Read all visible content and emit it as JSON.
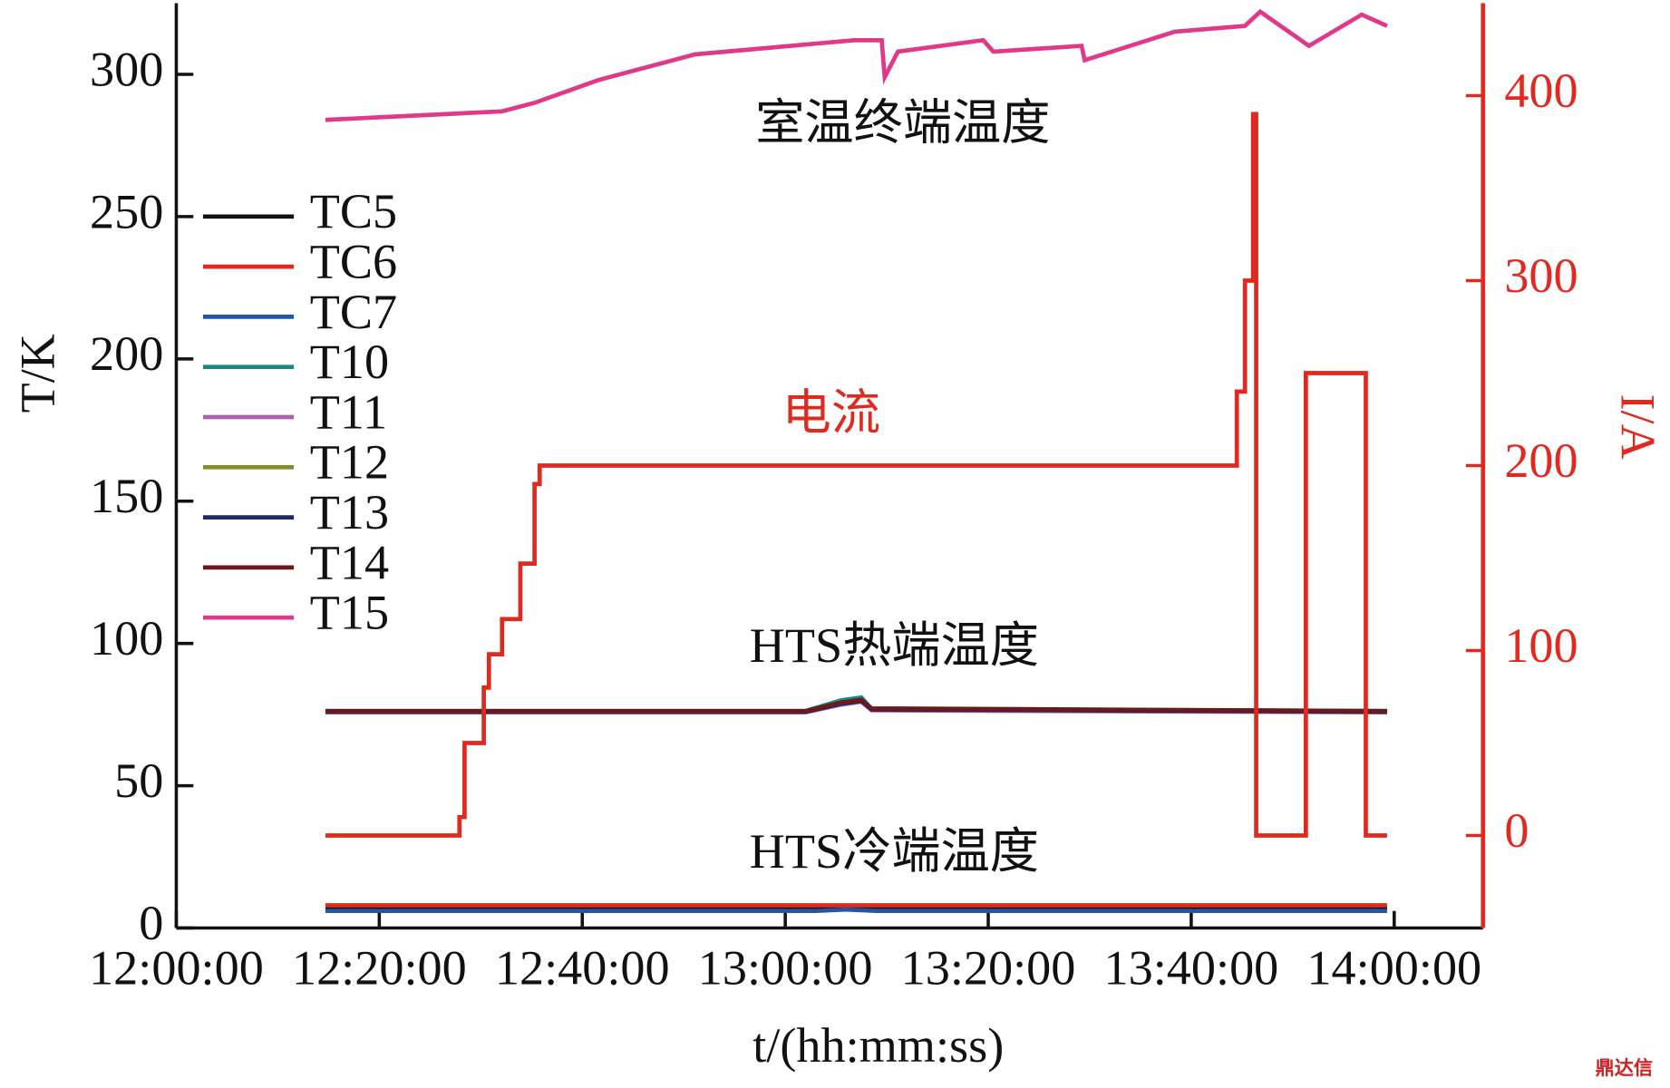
{
  "chart_data": {
    "type": "line",
    "xlabel": "t/(hh:mm:ss)",
    "ylabel": "T/K",
    "y2label": "I/A",
    "xlim": [
      "12:00:00",
      "14:08:45"
    ],
    "xticks": [
      "12:00:00",
      "12:20:00",
      "12:40:00",
      "13:00:00",
      "13:20:00",
      "13:40:00",
      "14:00:00"
    ],
    "ylim": [
      0,
      325
    ],
    "yticks": [
      0,
      50,
      100,
      150,
      200,
      250,
      300
    ],
    "y2lim": [
      -50,
      450
    ],
    "y2ticks": [
      0,
      100,
      200,
      300,
      400
    ],
    "y2color": "#e02a20",
    "legend": "upper left",
    "annotations": [
      {
        "text": "室温终端温度",
        "color": "#111111"
      },
      {
        "text": "电流",
        "color": "#e02a20"
      },
      {
        "text": "HTS热端温度",
        "color": "#111111"
      },
      {
        "text": "HTS冷端温度",
        "color": "#111111"
      }
    ],
    "watermark": "鼎达信",
    "series": [
      {
        "name": "TC5",
        "color": "#111111",
        "x": [
          "12:14:42",
          "13:03:00",
          "13:06:00",
          "13:09:00",
          "13:59:18"
        ],
        "values": [
          7,
          7,
          7.3,
          7,
          7
        ]
      },
      {
        "name": "TC6",
        "color": "#e02a20",
        "x": [
          "12:14:42",
          "13:03:00",
          "13:06:00",
          "13:09:00",
          "13:59:18"
        ],
        "values": [
          8,
          8,
          8,
          8,
          8
        ]
      },
      {
        "name": "TC7",
        "color": "#2456a8",
        "x": [
          "12:14:42",
          "13:03:00",
          "13:06:00",
          "13:09:00",
          "13:59:18"
        ],
        "values": [
          6,
          6,
          6.5,
          6,
          6
        ]
      },
      {
        "name": "T10",
        "color": "#1a8a80",
        "x": [
          "12:14:42",
          "13:02:00",
          "13:05:30",
          "13:07:30",
          "13:08:30",
          "13:59:18"
        ],
        "values": [
          76.3,
          76.3,
          80,
          81,
          77,
          76.3
        ]
      },
      {
        "name": "T11",
        "color": "#b060b0",
        "x": [
          "12:14:42",
          "13:02:00",
          "13:05:30",
          "13:07:30",
          "13:08:30",
          "13:59:18"
        ],
        "values": [
          75.8,
          75.8,
          78.5,
          79.5,
          76.5,
          75.8
        ]
      },
      {
        "name": "T12",
        "color": "#8a8a2a",
        "x": [
          "12:14:42",
          "13:02:00",
          "13:05:30",
          "13:07:30",
          "13:08:30",
          "13:59:18"
        ],
        "values": [
          76,
          76,
          79,
          80,
          77,
          76
        ]
      },
      {
        "name": "T13",
        "color": "#1c2a6a",
        "x": [
          "12:14:42",
          "13:02:00",
          "13:05:30",
          "13:07:30",
          "13:08:30",
          "13:59:18"
        ],
        "values": [
          76,
          76,
          78.8,
          79.8,
          76.8,
          76
        ]
      },
      {
        "name": "T14",
        "color": "#6a1a1a",
        "x": [
          "12:14:42",
          "13:02:00",
          "13:05:30",
          "13:07:30",
          "13:08:30",
          "13:59:18"
        ],
        "values": [
          76.2,
          76.2,
          79.2,
          80.2,
          77.2,
          76.2
        ]
      },
      {
        "name": "T15",
        "color": "#e0388a",
        "x": [
          "12:14:42",
          "12:32:06",
          "12:35:18",
          "12:41:36",
          "12:51:06",
          "13:03:42",
          "13:06:48",
          "13:09:30",
          "13:09:48",
          "13:11:06",
          "13:19:30",
          "13:20:30",
          "13:29:12",
          "13:29:30",
          "13:38:24",
          "13:45:18",
          "13:46:48",
          "13:51:36",
          "13:56:48",
          "13:59:18"
        ],
        "values": [
          284,
          287,
          290,
          298,
          307,
          311,
          312,
          312,
          299,
          308,
          312,
          308,
          310,
          305,
          315,
          317,
          322,
          310,
          321,
          317
        ]
      }
    ],
    "current": {
      "axis": "y2",
      "color": "#e02a20",
      "x": [
        "12:14:42",
        "12:27:54",
        "12:27:54",
        "12:28:24",
        "12:28:24",
        "12:30:18",
        "12:30:18",
        "12:30:48",
        "12:30:48",
        "12:32:06",
        "12:32:06",
        "12:33:54",
        "12:33:54",
        "12:35:18",
        "12:35:18",
        "12:35:48",
        "12:35:48",
        "13:44:30",
        "13:44:30",
        "13:45:18",
        "13:45:18",
        "13:46:06",
        "13:46:06",
        "13:46:24",
        "13:46:24",
        "13:51:18",
        "13:51:18",
        "13:57:12",
        "13:57:12",
        "13:59:18"
      ],
      "values": [
        0,
        0,
        10,
        10,
        50,
        50,
        80,
        80,
        98,
        98,
        117,
        117,
        147,
        147,
        190,
        190,
        200,
        200,
        240,
        240,
        300,
        300,
        390,
        390,
        0,
        0,
        250,
        250,
        0,
        0
      ]
    }
  }
}
